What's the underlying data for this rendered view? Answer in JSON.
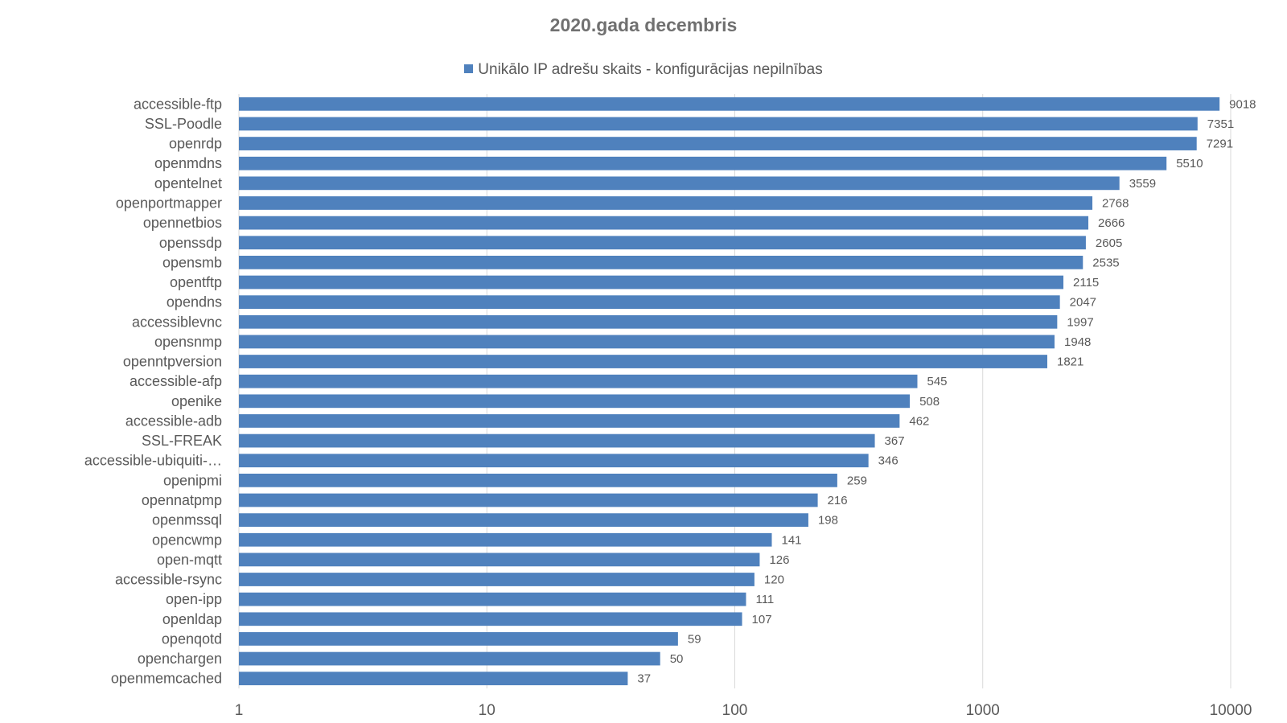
{
  "chart_data": {
    "type": "bar",
    "orientation": "horizontal",
    "title": "2020.gada  decembris",
    "legend_position": "top",
    "x_scale": "log",
    "xlim": [
      1,
      10000
    ],
    "x_ticks": [
      "1",
      "10",
      "100",
      "1000",
      "10000"
    ],
    "grid": true,
    "bar_color": "#4f81bd",
    "series": [
      {
        "name": "Unikālo IP adrešu skaits  -  konfigurācijas nepilnības",
        "values": [
          9018,
          7351,
          7291,
          5510,
          3559,
          2768,
          2666,
          2605,
          2535,
          2115,
          2047,
          1997,
          1948,
          1821,
          545,
          508,
          462,
          367,
          346,
          259,
          216,
          198,
          141,
          126,
          120,
          111,
          107,
          59,
          50,
          37
        ]
      }
    ],
    "categories": [
      "accessible-ftp",
      "SSL-Poodle",
      "openrdp",
      "openmdns",
      "opentelnet",
      "openportmapper",
      "opennetbios",
      "openssdp",
      "opensmb",
      "opentftp",
      "opendns",
      "accessiblevnc",
      "opensnmp",
      "openntpversion",
      "accessible-afp",
      "openike",
      "accessible-adb",
      "SSL-FREAK",
      "accessible-ubiquiti-…",
      "openipmi",
      "opennatpmp",
      "openmssql",
      "opencwmp",
      "open-mqtt",
      "accessible-rsync",
      "open-ipp",
      "openldap",
      "openqotd",
      "openchargen",
      "openmemcached"
    ]
  }
}
